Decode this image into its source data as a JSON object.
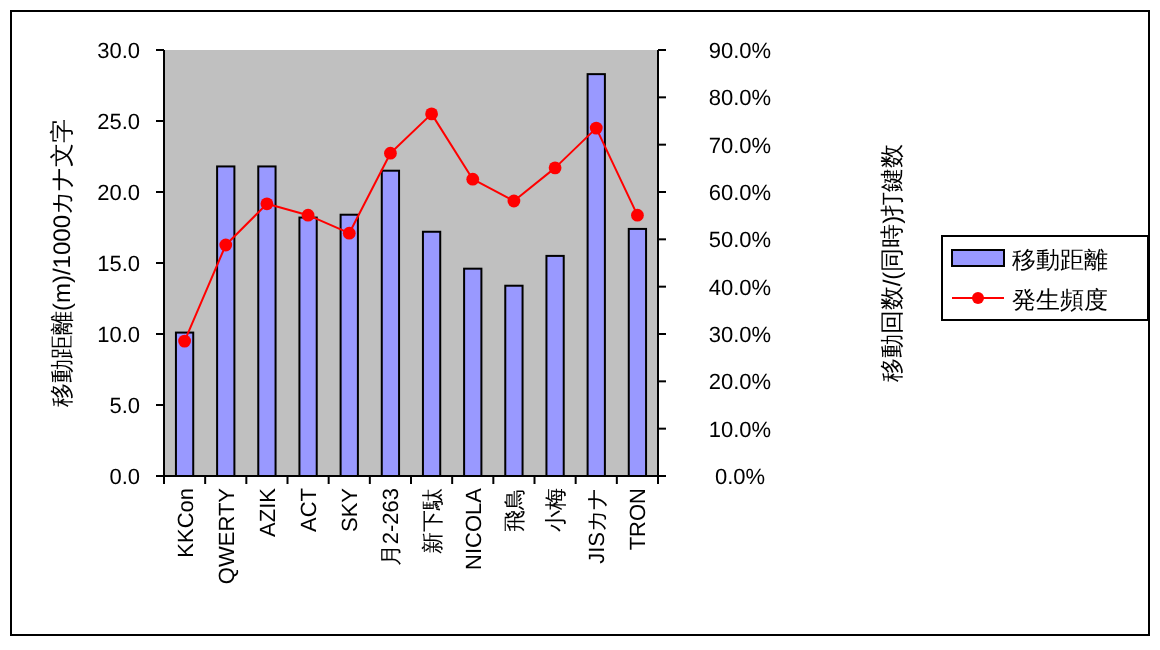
{
  "chart_data": {
    "type": "bar",
    "categories": [
      "KKCon",
      "QWERTY",
      "AZIK",
      "ACT",
      "SKY",
      "月2-263",
      "新下駄",
      "NICOLA",
      "飛鳥",
      "小梅",
      "JISカナ",
      "TRON"
    ],
    "series": [
      {
        "name": "移動距離",
        "type": "bar",
        "color": "#9999ff",
        "values": [
          10.1,
          21.8,
          21.8,
          18.2,
          18.4,
          21.5,
          17.2,
          14.6,
          13.4,
          15.5,
          28.3,
          17.4
        ]
      },
      {
        "name": "発生頻度",
        "type": "line",
        "axis": "y2",
        "color": "#ff0000",
        "values": [
          28.5,
          48.8,
          57.5,
          55.1,
          51.3,
          68.2,
          76.5,
          62.7,
          58.1,
          65.1,
          73.5,
          55.1
        ]
      }
    ],
    "ylabel": "移動距離(m)/1000カナ文字",
    "y2label": "移動回数/(同時)打鍵数",
    "ylim": [
      0,
      30
    ],
    "yticks": [
      {
        "value": 0,
        "label": "0.0"
      },
      {
        "value": 5,
        "label": "5.0"
      },
      {
        "value": 10,
        "label": "10.0"
      },
      {
        "value": 15,
        "label": "15.0"
      },
      {
        "value": 20,
        "label": "20.0"
      },
      {
        "value": 25,
        "label": "25.0"
      },
      {
        "value": 30,
        "label": "30.0"
      }
    ],
    "y2lim": [
      0,
      90
    ],
    "y2ticks": [
      {
        "value": 0,
        "label": "0.0%"
      },
      {
        "value": 10,
        "label": "10.0%"
      },
      {
        "value": 20,
        "label": "20.0%"
      },
      {
        "value": 30,
        "label": "30.0%"
      },
      {
        "value": 40,
        "label": "40.0%"
      },
      {
        "value": 50,
        "label": "50.0%"
      },
      {
        "value": 60,
        "label": "60.0%"
      },
      {
        "value": 70,
        "label": "70.0%"
      },
      {
        "value": 80,
        "label": "80.0%"
      },
      {
        "value": 90,
        "label": "90.0%"
      }
    ],
    "grid": false,
    "legend": "right",
    "marker": "circle"
  }
}
